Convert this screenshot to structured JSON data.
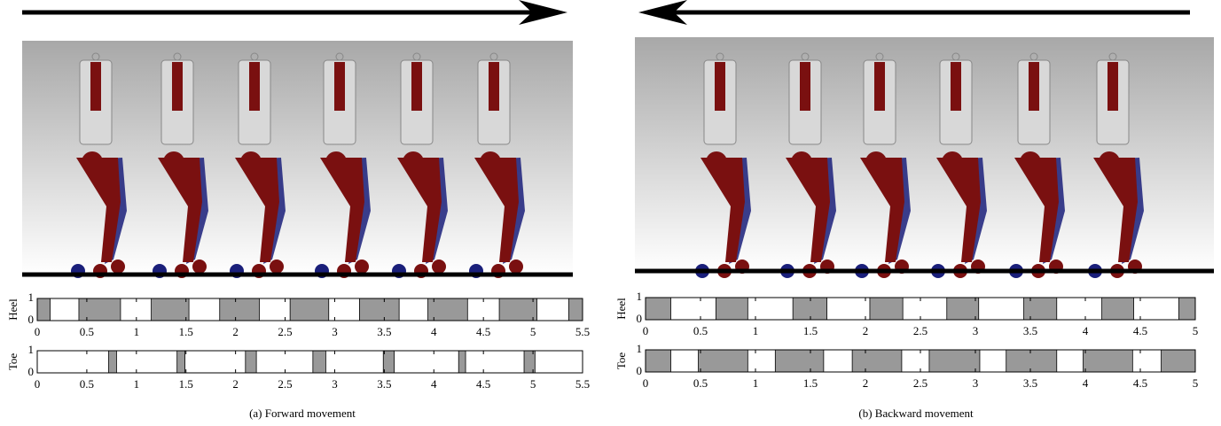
{
  "chart_data": [
    {
      "type": "timeline",
      "ylabel": "Heel",
      "color": "#999999",
      "xlim": [
        0,
        5.5
      ],
      "xticks": [
        0,
        0.5,
        1,
        1.5,
        2,
        2.5,
        3,
        3.5,
        4,
        4.5,
        5,
        5.5
      ],
      "ylim": [
        0,
        1
      ],
      "yticks": [
        0,
        1
      ],
      "intervals": [
        [
          0,
          0.13
        ],
        [
          0.42,
          0.84
        ],
        [
          1.15,
          1.53
        ],
        [
          1.84,
          2.24
        ],
        [
          2.55,
          2.94
        ],
        [
          3.25,
          3.65
        ],
        [
          3.94,
          4.34
        ],
        [
          4.66,
          5.04
        ],
        [
          5.36,
          5.5
        ]
      ]
    },
    {
      "type": "timeline",
      "ylabel": "Toe",
      "color": "#999999",
      "xlim": [
        0,
        5.5
      ],
      "xticks": [
        0,
        0.5,
        1,
        1.5,
        2,
        2.5,
        3,
        3.5,
        4,
        4.5,
        5,
        5.5
      ],
      "ylim": [
        0,
        1
      ],
      "yticks": [
        0,
        1
      ],
      "intervals": [
        [
          0.72,
          0.8
        ],
        [
          1.41,
          1.49
        ],
        [
          2.1,
          2.21
        ],
        [
          2.78,
          2.91
        ],
        [
          3.49,
          3.6
        ],
        [
          4.25,
          4.32
        ],
        [
          4.91,
          5.02
        ]
      ]
    },
    {
      "type": "timeline",
      "ylabel": "Heel",
      "color": "#999999",
      "xlim": [
        0,
        5
      ],
      "xticks": [
        0,
        0.5,
        1,
        1.5,
        2,
        2.5,
        3,
        3.5,
        4,
        4.5,
        5
      ],
      "ylim": [
        0,
        1
      ],
      "yticks": [
        0,
        1
      ],
      "intervals": [
        [
          0,
          0.23
        ],
        [
          0.64,
          0.93
        ],
        [
          1.34,
          1.65
        ],
        [
          2.04,
          2.34
        ],
        [
          2.74,
          3.03
        ],
        [
          3.44,
          3.74
        ],
        [
          4.15,
          4.44
        ],
        [
          4.85,
          5
        ]
      ]
    },
    {
      "type": "timeline",
      "ylabel": "Toe",
      "color": "#999999",
      "xlim": [
        0,
        5
      ],
      "xticks": [
        0,
        0.5,
        1,
        1.5,
        2,
        2.5,
        3,
        3.5,
        4,
        4.5,
        5
      ],
      "ylim": [
        0,
        1
      ],
      "yticks": [
        0,
        1
      ],
      "intervals": [
        [
          0,
          0.23
        ],
        [
          0.48,
          0.93
        ],
        [
          1.18,
          1.62
        ],
        [
          1.88,
          2.33
        ],
        [
          2.58,
          3.04
        ],
        [
          3.28,
          3.74
        ],
        [
          3.98,
          4.43
        ],
        [
          4.69,
          5
        ]
      ]
    }
  ],
  "captions": [
    "(a) Forward movement",
    "(b) Backward movement"
  ]
}
